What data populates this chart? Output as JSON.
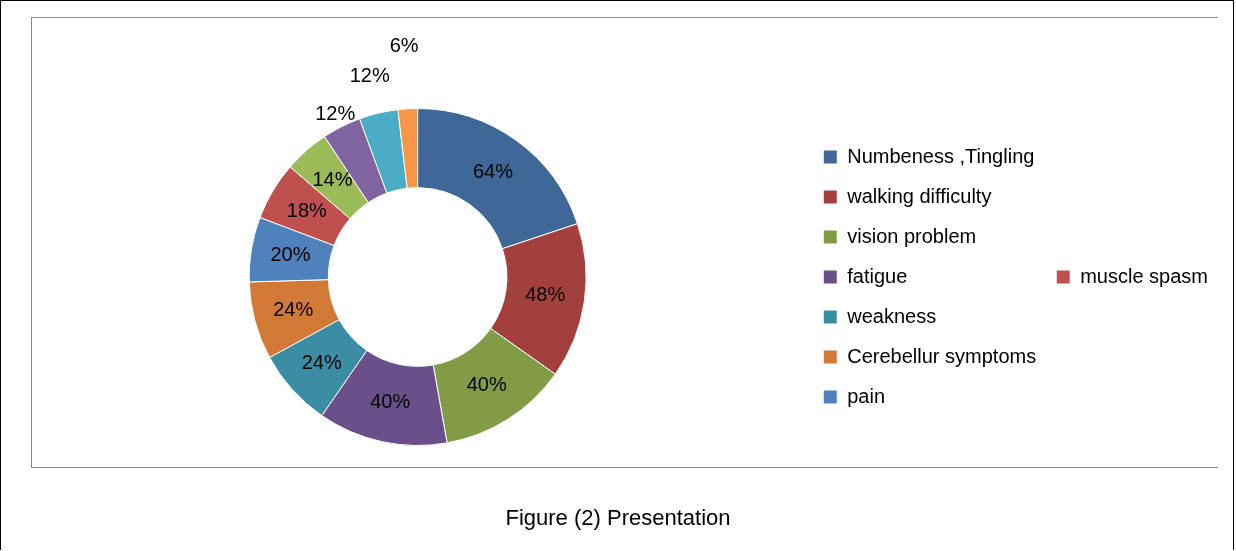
{
  "chart_data": {
    "type": "donut",
    "categories": [
      "Numbeness ,Tingling",
      "walking difficulty",
      "vision problem",
      "fatigue",
      "weakness",
      "Cerebellur symptoms",
      "pain",
      "muscle spasm",
      null,
      null,
      null,
      null
    ],
    "values": [
      64,
      48,
      40,
      40,
      24,
      24,
      20,
      18,
      14,
      12,
      12,
      6
    ],
    "value_labels": [
      "64%",
      "48%",
      "40%",
      "40%",
      "24%",
      "24%",
      "20%",
      "18%",
      "14%",
      "12%",
      "12%",
      "6%"
    ],
    "colors": [
      "#3f6797",
      "#a3403d",
      "#829c46",
      "#6a4f8a",
      "#3b8da3",
      "#d27a35",
      "#4f81bd",
      "#c0504d",
      "#9bbb59",
      "#8064a2",
      "#4bacc6",
      "#f79646"
    ],
    "legend": "right",
    "annotations": [
      "Figure (2) Presentation"
    ]
  }
}
